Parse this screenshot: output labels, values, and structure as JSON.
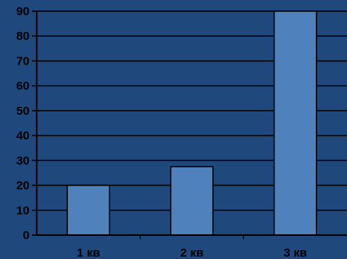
{
  "chart_data": {
    "type": "bar",
    "categories": [
      "1 кв",
      "2 кв",
      "3 кв"
    ],
    "values": [
      20,
      27.5,
      90
    ],
    "ylim": [
      0,
      90
    ],
    "yticks": [
      0,
      10,
      20,
      30,
      40,
      50,
      60,
      70,
      80,
      90
    ],
    "grid": true,
    "legend": "none",
    "colors": {
      "background": "#1f497d",
      "bar_fill": "#4f81bd",
      "bar_stroke": "#000000",
      "gridline": "#000000",
      "text": "#000000"
    }
  }
}
